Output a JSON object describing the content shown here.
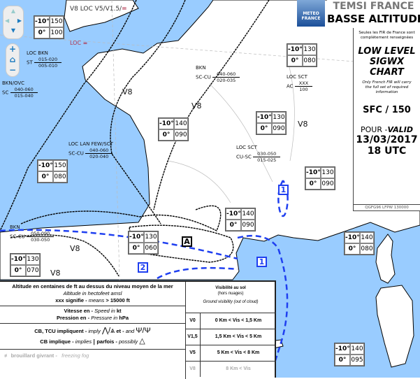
{
  "header": {
    "logo_line1": "METEO",
    "logo_line2": "FRANCE",
    "title1": "TEMSI FRANCE",
    "title2": "BASSE ALTITUDE"
  },
  "panel": {
    "note_fr": "Seules les FIR de France sont complètement renseignées",
    "title": [
      "LOW LEVEL",
      "SIGWX",
      "CHART"
    ],
    "note_en": "Only French FIR will carry the full set of required information",
    "levels": "SFC / 150",
    "valid_prefix": "POUR -",
    "valid_en": "VALID",
    "date": "13/03/2017",
    "time": "18 UTC",
    "code": "QGFG96 LFPW 130000"
  },
  "nav": {
    "up": "▲",
    "left": "◀",
    "right": "▶",
    "down": "▼",
    "zoom_in": "+",
    "home": "⌂",
    "zoom_out": "−"
  },
  "colors": {
    "sea": "#99ccff",
    "land": "#ffffff",
    "zone_line": "#1f3ff0",
    "fog_symbol": "#b0334d"
  },
  "temp_boxes": [
    {
      "t1": "-10°",
      "v1": "150",
      "t2": "0°",
      "v2": "100"
    },
    {
      "t1": "-10°",
      "v1": "150",
      "t2": "0°",
      "v2": "080"
    },
    {
      "t1": "-10°",
      "v1": "140",
      "t2": "0°",
      "v2": "090"
    },
    {
      "t1": "-10°",
      "v1": "130",
      "t2": "0°",
      "v2": "090"
    },
    {
      "t1": "-10°",
      "v1": "130",
      "t2": "0°",
      "v2": "080"
    },
    {
      "t1": "-10°",
      "v1": "130",
      "t2": "0°",
      "v2": "090"
    },
    {
      "t1": "-10°",
      "v1": "140",
      "t2": "0°",
      "v2": "090"
    },
    {
      "t1": "-10°",
      "v1": "130",
      "t2": "0°",
      "v2": "060"
    },
    {
      "t1": "-10°",
      "v1": "130",
      "t2": "0°",
      "v2": "070"
    },
    {
      "t1": "-10°",
      "v1": "140",
      "t2": "0°",
      "v2": "080"
    },
    {
      "t1": "-10°",
      "v1": "140",
      "t2": "0°",
      "v2": "095"
    }
  ],
  "clouds": [
    {
      "l1": "LOC BKN",
      "l2": "ST",
      "top": "015-020",
      "bot": "005-010"
    },
    {
      "l1": "BKN/OVC",
      "l2": "SC",
      "top": "040-060",
      "bot": "015-040"
    },
    {
      "l1": "BKN",
      "l2": "SC-CU",
      "top": "040-060",
      "bot": "020-035"
    },
    {
      "l1": "LOC LAN FEW/SCT",
      "l2": "SC-CU",
      "top": "040-060",
      "bot": "020-040"
    },
    {
      "l1": "LOC SCT",
      "l2": "CU-SC",
      "top": "030-050",
      "bot": "015-025"
    },
    {
      "l1": "LOC SCT",
      "l2": "AC",
      "top": "XXX",
      "bot": "100"
    },
    {
      "l1": "BKN",
      "l2": "SC-CU",
      "top": "050-090",
      "bot": "030-050"
    }
  ],
  "map_labels": {
    "top_vis": "V8 LOC V5/V1.5/",
    "loc": "LOC",
    "v8": "V8",
    "zone_a": "A",
    "zone_1": "1",
    "zone_2": "2",
    "fog_sym": "="
  },
  "legend": {
    "alt_fr": "Altitude en centaines de ft au dessus du niveau moyen de la mer",
    "alt_en": "Altitude in hectofeet amsl",
    "xxx_fr": "xxx signifie -",
    "xxx_en": "means",
    "xxx_val": "> 15000 ft",
    "speed_fr": "Vitesse en -",
    "speed_en": "Speed in",
    "speed_unit": "kt",
    "pres_fr": "Pression en -",
    "pres_en": "Pressure in",
    "pres_unit": "hPa",
    "cb_fr": "CB, TCU impliquent -",
    "cb_en": "imply",
    "cb_and_fr": "et -",
    "cb_and_en": "and",
    "cbi_fr": "CB implique -",
    "cbi_en": "implies",
    "cbi_poss_fr": "parfois -",
    "cbi_poss_en": "possibly",
    "fog_fr": "brouillard givrant -",
    "fog_en": "freezing fog",
    "vis_title_fr": "Visibilité au sol",
    "vis_sub_fr": "(hors nuages)",
    "vis_title_en": "Ground visibility (out of cloud)",
    "vis": [
      {
        "code": "V0",
        "range": "0 Km < Vis < 1,5 Km"
      },
      {
        "code": "V1,5",
        "range": "1,5 Km < Vis < 5 Km"
      },
      {
        "code": "V5",
        "range": "5 Km < Vis < 8 Km"
      },
      {
        "code": "V8",
        "range": "8 Km < Vis"
      }
    ]
  }
}
